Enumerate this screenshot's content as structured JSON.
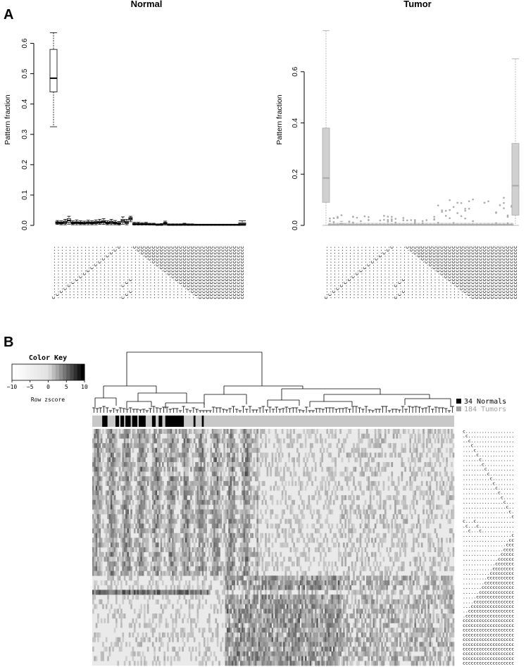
{
  "panels": {
    "a_label": "A",
    "b_label": "B"
  },
  "chart_data": [
    {
      "type": "box",
      "title": "Normal",
      "ylabel": "Pattern fraction",
      "ylim": [
        0,
        0.65
      ],
      "yticks": [
        "0.0",
        "0.1",
        "0.2",
        "0.3",
        "0.4",
        "0.5",
        "0.6"
      ],
      "color": "#000000",
      "boxes": [
        {
          "q1": 0.44,
          "med": 0.485,
          "q3": 0.58,
          "lo": 0.325,
          "hi": 0.635
        },
        {
          "q1": 0.006,
          "med": 0.009,
          "q3": 0.012,
          "lo": 0.003,
          "hi": 0.016
        },
        {
          "q1": 0.005,
          "med": 0.008,
          "q3": 0.011,
          "lo": 0.002,
          "hi": 0.015
        },
        {
          "q1": 0.006,
          "med": 0.01,
          "q3": 0.014,
          "lo": 0.002,
          "hi": 0.02
        },
        {
          "q1": 0.01,
          "med": 0.016,
          "q3": 0.022,
          "lo": 0.004,
          "hi": 0.03
        },
        {
          "q1": 0.005,
          "med": 0.008,
          "q3": 0.011,
          "lo": 0.002,
          "hi": 0.015
        },
        {
          "q1": 0.006,
          "med": 0.009,
          "q3": 0.012,
          "lo": 0.002,
          "hi": 0.018
        },
        {
          "q1": 0.005,
          "med": 0.008,
          "q3": 0.011,
          "lo": 0.002,
          "hi": 0.015
        },
        {
          "q1": 0.005,
          "med": 0.007,
          "q3": 0.01,
          "lo": 0.002,
          "hi": 0.014
        },
        {
          "q1": 0.006,
          "med": 0.009,
          "q3": 0.012,
          "lo": 0.002,
          "hi": 0.017
        },
        {
          "q1": 0.005,
          "med": 0.008,
          "q3": 0.011,
          "lo": 0.002,
          "hi": 0.015
        },
        {
          "q1": 0.006,
          "med": 0.009,
          "q3": 0.013,
          "lo": 0.002,
          "hi": 0.018
        },
        {
          "q1": 0.007,
          "med": 0.01,
          "q3": 0.014,
          "lo": 0.003,
          "hi": 0.02
        },
        {
          "q1": 0.008,
          "med": 0.012,
          "q3": 0.016,
          "lo": 0.003,
          "hi": 0.022
        },
        {
          "q1": 0.005,
          "med": 0.008,
          "q3": 0.011,
          "lo": 0.002,
          "hi": 0.015
        },
        {
          "q1": 0.006,
          "med": 0.01,
          "q3": 0.014,
          "lo": 0.002,
          "hi": 0.02
        },
        {
          "q1": 0.005,
          "med": 0.008,
          "q3": 0.011,
          "lo": 0.002,
          "hi": 0.016
        },
        {
          "q1": 0.004,
          "med": 0.006,
          "q3": 0.009,
          "lo": 0.001,
          "hi": 0.013
        },
        {
          "q1": 0.01,
          "med": 0.015,
          "q3": 0.02,
          "lo": 0.004,
          "hi": 0.028
        },
        {
          "q1": 0.006,
          "med": 0.01,
          "q3": 0.014,
          "lo": 0.002,
          "hi": 0.02
        },
        {
          "q1": 0.018,
          "med": 0.022,
          "q3": 0.026,
          "lo": 0.012,
          "hi": 0.03
        },
        {
          "q1": 0.003,
          "med": 0.005,
          "q3": 0.007,
          "lo": 0.001,
          "hi": 0.01
        },
        {
          "q1": 0.003,
          "med": 0.005,
          "q3": 0.007,
          "lo": 0.001,
          "hi": 0.01
        },
        {
          "q1": 0.003,
          "med": 0.004,
          "q3": 0.006,
          "lo": 0.001,
          "hi": 0.009
        },
        {
          "q1": 0.003,
          "med": 0.005,
          "q3": 0.007,
          "lo": 0.001,
          "hi": 0.01
        },
        {
          "q1": 0.002,
          "med": 0.003,
          "q3": 0.005,
          "lo": 0.001,
          "hi": 0.007
        },
        {
          "q1": 0.002,
          "med": 0.003,
          "q3": 0.005,
          "lo": 0.001,
          "hi": 0.007
        },
        {
          "q1": 0.001,
          "med": 0.002,
          "q3": 0.003,
          "lo": 0.0,
          "hi": 0.005
        },
        {
          "q1": 0.002,
          "med": 0.003,
          "q3": 0.004,
          "lo": 0.0,
          "hi": 0.006
        },
        {
          "q1": 0.004,
          "med": 0.007,
          "q3": 0.01,
          "lo": 0.001,
          "hi": 0.014
        },
        {
          "q1": 0.001,
          "med": 0.002,
          "q3": 0.003,
          "lo": 0.0,
          "hi": 0.005
        },
        {
          "q1": 0.001,
          "med": 0.002,
          "q3": 0.003,
          "lo": 0.0,
          "hi": 0.005
        },
        {
          "q1": 0.001,
          "med": 0.002,
          "q3": 0.003,
          "lo": 0.0,
          "hi": 0.005
        },
        {
          "q1": 0.001,
          "med": 0.002,
          "q3": 0.003,
          "lo": 0.0,
          "hi": 0.005
        },
        {
          "q1": 0.002,
          "med": 0.003,
          "q3": 0.005,
          "lo": 0.0,
          "hi": 0.007
        },
        {
          "q1": 0.001,
          "med": 0.002,
          "q3": 0.003,
          "lo": 0.0,
          "hi": 0.005
        },
        {
          "q1": 0.001,
          "med": 0.002,
          "q3": 0.003,
          "lo": 0.0,
          "hi": 0.005
        },
        {
          "q1": 0.001,
          "med": 0.002,
          "q3": 0.003,
          "lo": 0.0,
          "hi": 0.004
        },
        {
          "q1": 0.001,
          "med": 0.002,
          "q3": 0.003,
          "lo": 0.0,
          "hi": 0.004
        },
        {
          "q1": 0.001,
          "med": 0.002,
          "q3": 0.003,
          "lo": 0.0,
          "hi": 0.004
        },
        {
          "q1": 0.001,
          "med": 0.002,
          "q3": 0.003,
          "lo": 0.0,
          "hi": 0.004
        },
        {
          "q1": 0.001,
          "med": 0.002,
          "q3": 0.003,
          "lo": 0.0,
          "hi": 0.004
        },
        {
          "q1": 0.001,
          "med": 0.002,
          "q3": 0.003,
          "lo": 0.0,
          "hi": 0.004
        },
        {
          "q1": 0.001,
          "med": 0.002,
          "q3": 0.003,
          "lo": 0.0,
          "hi": 0.004
        },
        {
          "q1": 0.001,
          "med": 0.002,
          "q3": 0.003,
          "lo": 0.0,
          "hi": 0.004
        },
        {
          "q1": 0.001,
          "med": 0.002,
          "q3": 0.003,
          "lo": 0.0,
          "hi": 0.004
        },
        {
          "q1": 0.001,
          "med": 0.002,
          "q3": 0.003,
          "lo": 0.0,
          "hi": 0.004
        },
        {
          "q1": 0.001,
          "med": 0.002,
          "q3": 0.003,
          "lo": 0.0,
          "hi": 0.004
        },
        {
          "q1": 0.001,
          "med": 0.002,
          "q3": 0.003,
          "lo": 0.0,
          "hi": 0.004
        },
        {
          "q1": 0.002,
          "med": 0.004,
          "q3": 0.008,
          "lo": 0.0,
          "hi": 0.015
        }
      ]
    },
    {
      "type": "box",
      "title": "Tumor",
      "ylabel": "Pattern fraction",
      "ylim": [
        0,
        0.77
      ],
      "yticks": [
        "0.0",
        "0.2",
        "0.4",
        "0.6"
      ],
      "color": "#aaaaaa",
      "boxes": [
        {
          "q1": 0.09,
          "med": 0.185,
          "q3": 0.38,
          "lo": 0.0,
          "hi": 0.76
        },
        {
          "q1": 0.001,
          "med": 0.002,
          "q3": 0.004,
          "lo": 0.0,
          "hi": 0.008
        },
        {
          "q1": 0.001,
          "med": 0.002,
          "q3": 0.004,
          "lo": 0.0,
          "hi": 0.008
        },
        {
          "q1": 0.001,
          "med": 0.002,
          "q3": 0.004,
          "lo": 0.0,
          "hi": 0.008
        },
        {
          "q1": 0.002,
          "med": 0.004,
          "q3": 0.008,
          "lo": 0.0,
          "hi": 0.016
        },
        {
          "q1": 0.001,
          "med": 0.002,
          "q3": 0.004,
          "lo": 0.0,
          "hi": 0.008
        },
        {
          "q1": 0.001,
          "med": 0.002,
          "q3": 0.004,
          "lo": 0.0,
          "hi": 0.008
        },
        {
          "q1": 0.001,
          "med": 0.002,
          "q3": 0.004,
          "lo": 0.0,
          "hi": 0.008
        },
        {
          "q1": 0.001,
          "med": 0.002,
          "q3": 0.004,
          "lo": 0.0,
          "hi": 0.008
        },
        {
          "q1": 0.001,
          "med": 0.002,
          "q3": 0.004,
          "lo": 0.0,
          "hi": 0.008
        },
        {
          "q1": 0.001,
          "med": 0.002,
          "q3": 0.004,
          "lo": 0.0,
          "hi": 0.008
        },
        {
          "q1": 0.001,
          "med": 0.002,
          "q3": 0.004,
          "lo": 0.0,
          "hi": 0.008
        },
        {
          "q1": 0.001,
          "med": 0.002,
          "q3": 0.004,
          "lo": 0.0,
          "hi": 0.008
        },
        {
          "q1": 0.001,
          "med": 0.002,
          "q3": 0.004,
          "lo": 0.0,
          "hi": 0.008
        },
        {
          "q1": 0.001,
          "med": 0.002,
          "q3": 0.004,
          "lo": 0.0,
          "hi": 0.008
        },
        {
          "q1": 0.001,
          "med": 0.002,
          "q3": 0.004,
          "lo": 0.0,
          "hi": 0.008
        },
        {
          "q1": 0.001,
          "med": 0.002,
          "q3": 0.004,
          "lo": 0.0,
          "hi": 0.008
        },
        {
          "q1": 0.001,
          "med": 0.002,
          "q3": 0.004,
          "lo": 0.0,
          "hi": 0.008
        },
        {
          "q1": 0.001,
          "med": 0.002,
          "q3": 0.004,
          "lo": 0.0,
          "hi": 0.008
        },
        {
          "q1": 0.001,
          "med": 0.002,
          "q3": 0.004,
          "lo": 0.0,
          "hi": 0.008
        },
        {
          "q1": 0.001,
          "med": 0.002,
          "q3": 0.004,
          "lo": 0.0,
          "hi": 0.008
        },
        {
          "q1": 0.001,
          "med": 0.002,
          "q3": 0.004,
          "lo": 0.0,
          "hi": 0.008
        },
        {
          "q1": 0.001,
          "med": 0.002,
          "q3": 0.004,
          "lo": 0.0,
          "hi": 0.008
        },
        {
          "q1": 0.001,
          "med": 0.002,
          "q3": 0.004,
          "lo": 0.0,
          "hi": 0.008
        },
        {
          "q1": 0.001,
          "med": 0.002,
          "q3": 0.004,
          "lo": 0.0,
          "hi": 0.008
        },
        {
          "q1": 0.001,
          "med": 0.002,
          "q3": 0.004,
          "lo": 0.0,
          "hi": 0.008
        },
        {
          "q1": 0.001,
          "med": 0.002,
          "q3": 0.004,
          "lo": 0.0,
          "hi": 0.008
        },
        {
          "q1": 0.001,
          "med": 0.002,
          "q3": 0.004,
          "lo": 0.0,
          "hi": 0.008
        },
        {
          "q1": 0.001,
          "med": 0.002,
          "q3": 0.004,
          "lo": 0.0,
          "hi": 0.008
        },
        {
          "q1": 0.001,
          "med": 0.002,
          "q3": 0.004,
          "lo": 0.0,
          "hi": 0.008
        },
        {
          "q1": 0.001,
          "med": 0.002,
          "q3": 0.004,
          "lo": 0.0,
          "hi": 0.008
        },
        {
          "q1": 0.001,
          "med": 0.002,
          "q3": 0.004,
          "lo": 0.0,
          "hi": 0.008
        },
        {
          "q1": 0.001,
          "med": 0.002,
          "q3": 0.004,
          "lo": 0.0,
          "hi": 0.008
        },
        {
          "q1": 0.001,
          "med": 0.002,
          "q3": 0.004,
          "lo": 0.0,
          "hi": 0.008
        },
        {
          "q1": 0.001,
          "med": 0.002,
          "q3": 0.004,
          "lo": 0.0,
          "hi": 0.008
        },
        {
          "q1": 0.001,
          "med": 0.002,
          "q3": 0.004,
          "lo": 0.0,
          "hi": 0.008
        },
        {
          "q1": 0.001,
          "med": 0.002,
          "q3": 0.004,
          "lo": 0.0,
          "hi": 0.008
        },
        {
          "q1": 0.001,
          "med": 0.002,
          "q3": 0.004,
          "lo": 0.0,
          "hi": 0.008
        },
        {
          "q1": 0.001,
          "med": 0.002,
          "q3": 0.004,
          "lo": 0.0,
          "hi": 0.008
        },
        {
          "q1": 0.001,
          "med": 0.002,
          "q3": 0.004,
          "lo": 0.0,
          "hi": 0.008
        },
        {
          "q1": 0.001,
          "med": 0.002,
          "q3": 0.004,
          "lo": 0.0,
          "hi": 0.008
        },
        {
          "q1": 0.001,
          "med": 0.002,
          "q3": 0.004,
          "lo": 0.0,
          "hi": 0.008
        },
        {
          "q1": 0.001,
          "med": 0.002,
          "q3": 0.004,
          "lo": 0.0,
          "hi": 0.008
        },
        {
          "q1": 0.001,
          "med": 0.002,
          "q3": 0.004,
          "lo": 0.0,
          "hi": 0.008
        },
        {
          "q1": 0.001,
          "med": 0.002,
          "q3": 0.004,
          "lo": 0.0,
          "hi": 0.008
        },
        {
          "q1": 0.001,
          "med": 0.002,
          "q3": 0.004,
          "lo": 0.0,
          "hi": 0.008
        },
        {
          "q1": 0.001,
          "med": 0.002,
          "q3": 0.004,
          "lo": 0.0,
          "hi": 0.008
        },
        {
          "q1": 0.001,
          "med": 0.002,
          "q3": 0.004,
          "lo": 0.0,
          "hi": 0.008
        },
        {
          "q1": 0.001,
          "med": 0.002,
          "q3": 0.004,
          "lo": 0.0,
          "hi": 0.008
        },
        {
          "q1": 0.04,
          "med": 0.155,
          "q3": 0.32,
          "lo": 0.0,
          "hi": 0.65
        }
      ]
    },
    {
      "type": "heatmap",
      "color_key": {
        "title": "Color Key",
        "ticks": [
          "−10",
          "−5",
          "0",
          "5",
          "10"
        ],
        "range": [
          -10,
          10
        ],
        "label": "Row zscore"
      },
      "legend": [
        {
          "label": "34 Normals",
          "color": "#000000"
        },
        {
          "label": "184 Tumors",
          "color": "#a0a0a0"
        }
      ],
      "n_rows": 50,
      "n_cols": 218
    }
  ]
}
